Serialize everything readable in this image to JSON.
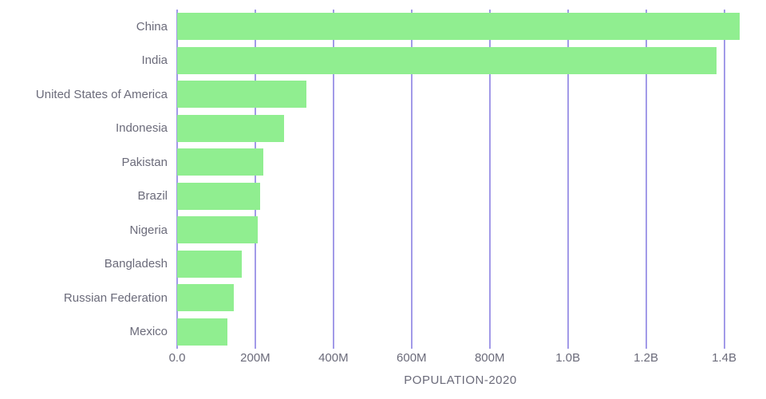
{
  "chart_data": {
    "type": "bar",
    "orientation": "horizontal",
    "title": "POPULATION-2020",
    "categories": [
      "China",
      "India",
      "United States of America",
      "Indonesia",
      "Pakistan",
      "Brazil",
      "Nigeria",
      "Bangladesh",
      "Russian Federation",
      "Mexico"
    ],
    "values": [
      1439323776,
      1380004385,
      331002651,
      273523615,
      220892340,
      212559417,
      206139589,
      164689383,
      145934462,
      128932753
    ],
    "xlabel": "POPULATION-2020",
    "ylabel": "",
    "xlim": [
      0,
      1450000000
    ],
    "x_ticks": [
      {
        "value": 0,
        "label": "0.0"
      },
      {
        "value": 200000000,
        "label": "200M"
      },
      {
        "value": 400000000,
        "label": "400M"
      },
      {
        "value": 600000000,
        "label": "600M"
      },
      {
        "value": 800000000,
        "label": "800M"
      },
      {
        "value": 1000000000,
        "label": "1.0B"
      },
      {
        "value": 1200000000,
        "label": "1.2B"
      },
      {
        "value": 1400000000,
        "label": "1.4B"
      }
    ],
    "grid": true,
    "legend": "none",
    "colors": {
      "bar": "#90ee90",
      "gridline": "#4634d1",
      "text": "#6b6b7a",
      "background": "#ffffff"
    }
  }
}
